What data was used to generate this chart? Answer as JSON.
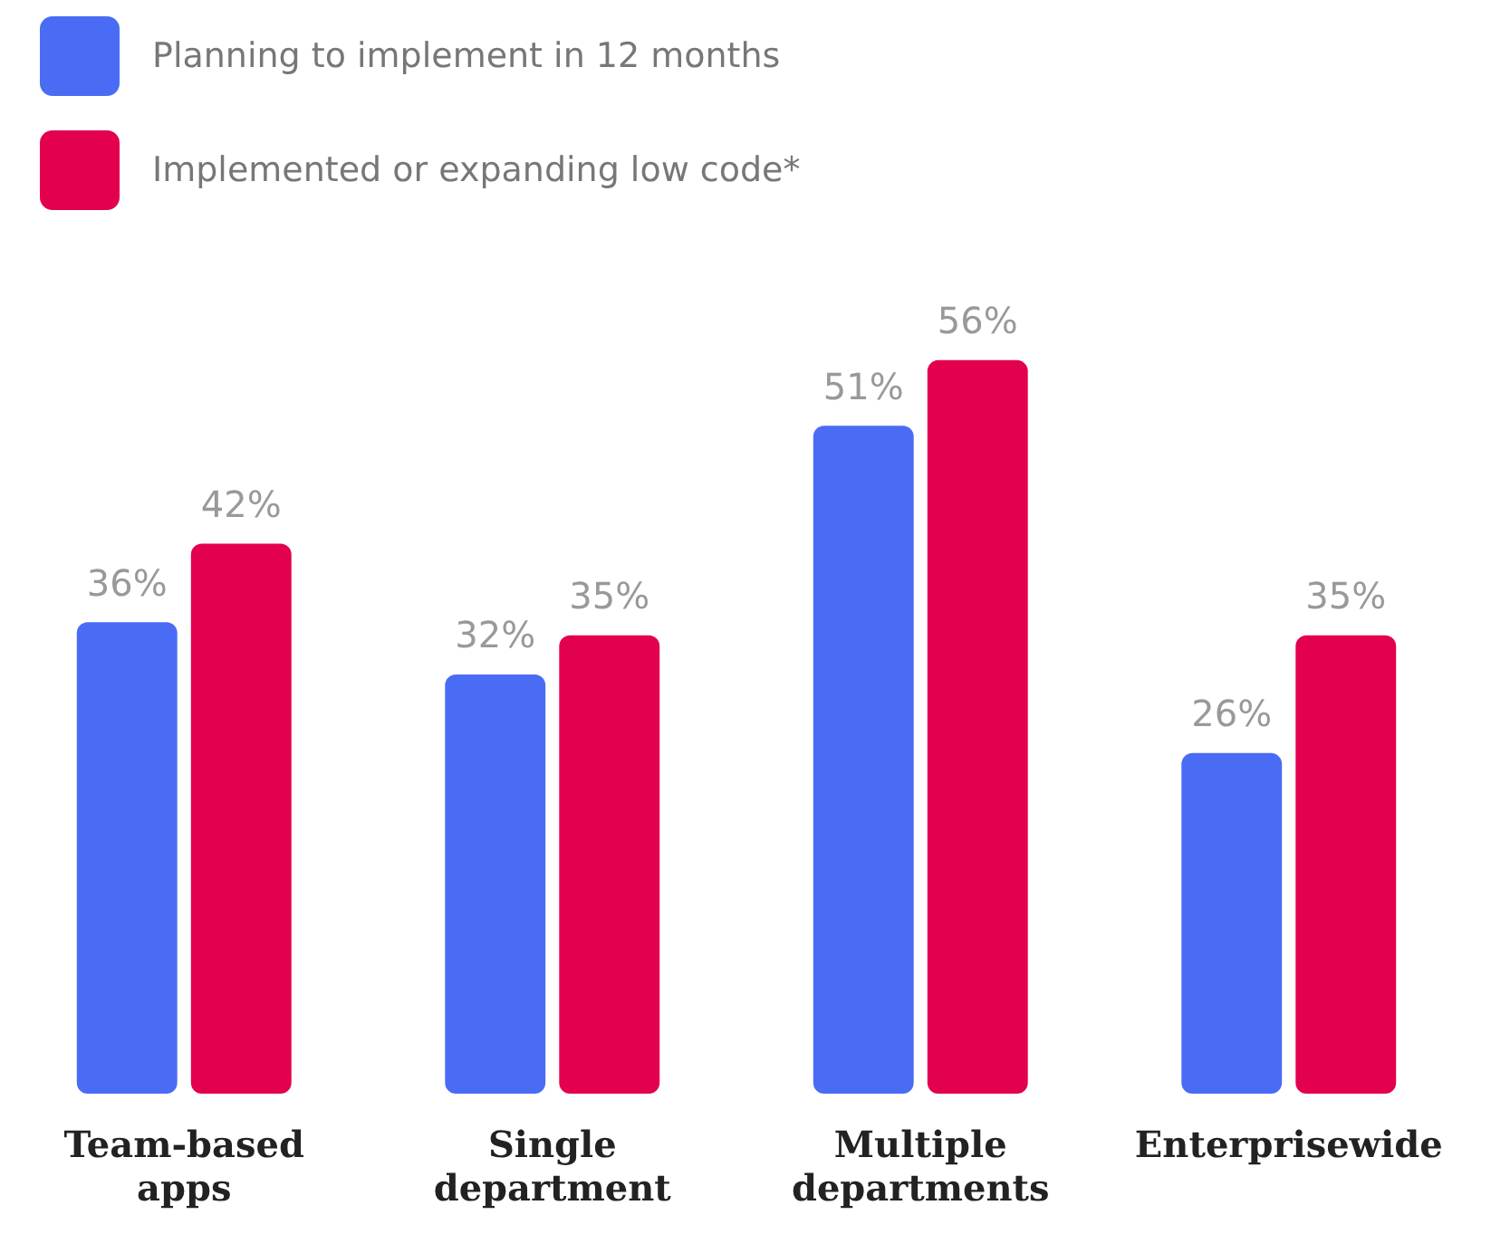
{
  "chart_data": {
    "type": "bar",
    "categories": [
      "Team-based apps",
      "Single department",
      "Multiple departments",
      "Enterprisewide"
    ],
    "series": [
      {
        "name": "Planning to implement in 12 months",
        "color": "#4a6cf4",
        "values": [
          36,
          32,
          51,
          26
        ],
        "value_labels": [
          "36%",
          "32%",
          "51%",
          "26%"
        ]
      },
      {
        "name": "Implemented or expanding low code*",
        "color": "#e2004f",
        "values": [
          42,
          35,
          56,
          35
        ],
        "value_labels": [
          "42%",
          "35%",
          "56%",
          "35%"
        ]
      }
    ],
    "legend": "top left",
    "grid": false
  }
}
